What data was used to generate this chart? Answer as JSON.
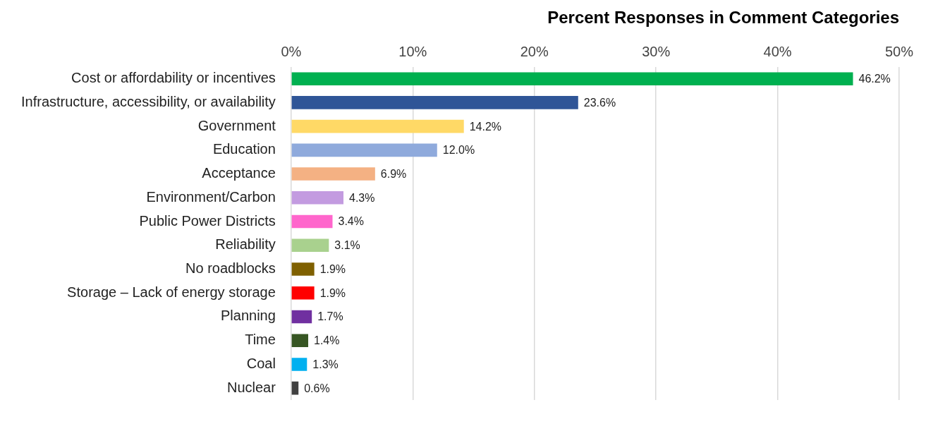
{
  "chart_data": {
    "type": "bar",
    "orientation": "horizontal",
    "title": "Percent Responses in Comment Categories",
    "categories": [
      "Cost or affordability or incentives",
      "Infrastructure, accessibility, or availability",
      "Government",
      "Education",
      "Acceptance",
      "Environment/Carbon",
      "Public Power Districts",
      "Reliability",
      "No roadblocks",
      "Storage – Lack of energy storage",
      "Planning",
      "Time",
      "Coal",
      "Nuclear"
    ],
    "values": [
      46.2,
      23.6,
      14.2,
      12.0,
      6.9,
      4.3,
      3.4,
      3.1,
      1.9,
      1.9,
      1.7,
      1.4,
      1.3,
      0.6
    ],
    "value_labels": [
      "46.2%",
      "23.6%",
      "14.2%",
      "12.0%",
      "6.9%",
      "4.3%",
      "3.4%",
      "3.1%",
      "1.9%",
      "1.9%",
      "1.7%",
      "1.4%",
      "1.3%",
      "0.6%"
    ],
    "colors": [
      "#00b050",
      "#2f5597",
      "#ffd966",
      "#8faadc",
      "#f4b183",
      "#c39be0",
      "#ff66cc",
      "#a9d18e",
      "#7f6000",
      "#ff0000",
      "#7030a0",
      "#375623",
      "#00b0f0",
      "#404040"
    ],
    "xlim": [
      0,
      50
    ],
    "xticks": [
      {
        "value": 0,
        "label": "0%"
      },
      {
        "value": 10,
        "label": "10%"
      },
      {
        "value": 20,
        "label": "20%"
      },
      {
        "value": 30,
        "label": "30%"
      },
      {
        "value": 40,
        "label": "40%"
      },
      {
        "value": 50,
        "label": "50%"
      }
    ],
    "grid": "x",
    "legend": false
  }
}
